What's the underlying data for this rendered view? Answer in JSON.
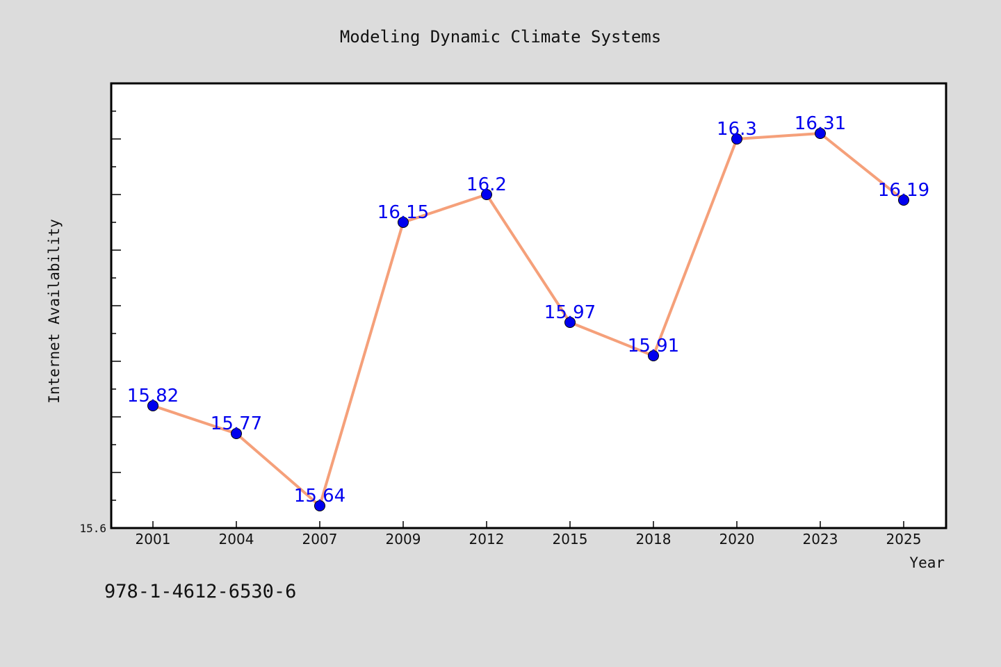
{
  "footer": {
    "isbn": "978-1-4612-6530-6"
  },
  "colors": {
    "background": "#dcdcdc",
    "plot_background": "#ffffff",
    "line": "#f5a07a",
    "marker": "#0000ee",
    "label": "#0000ee"
  },
  "chart_data": {
    "type": "line",
    "title": "Modeling Dynamic Climate Systems",
    "xlabel": "Year",
    "ylabel": "Internet Availability",
    "categories": [
      "2001",
      "2004",
      "2007",
      "2009",
      "2012",
      "2015",
      "2018",
      "2020",
      "2023",
      "2025"
    ],
    "series": [
      {
        "values": [
          15.82,
          15.77,
          15.64,
          16.15,
          16.2,
          15.97,
          15.91,
          16.3,
          16.31,
          16.19
        ]
      }
    ],
    "data_labels": [
      "15.82",
      "15.77",
      "15.64",
      "16.15",
      "16.2",
      "15.97",
      "15.91",
      "16.3",
      "16.31",
      "16.19"
    ],
    "ylim": [
      15.6,
      16.4
    ],
    "yticks_labeled": [
      "15.6"
    ],
    "grid": false,
    "legend": "none"
  }
}
